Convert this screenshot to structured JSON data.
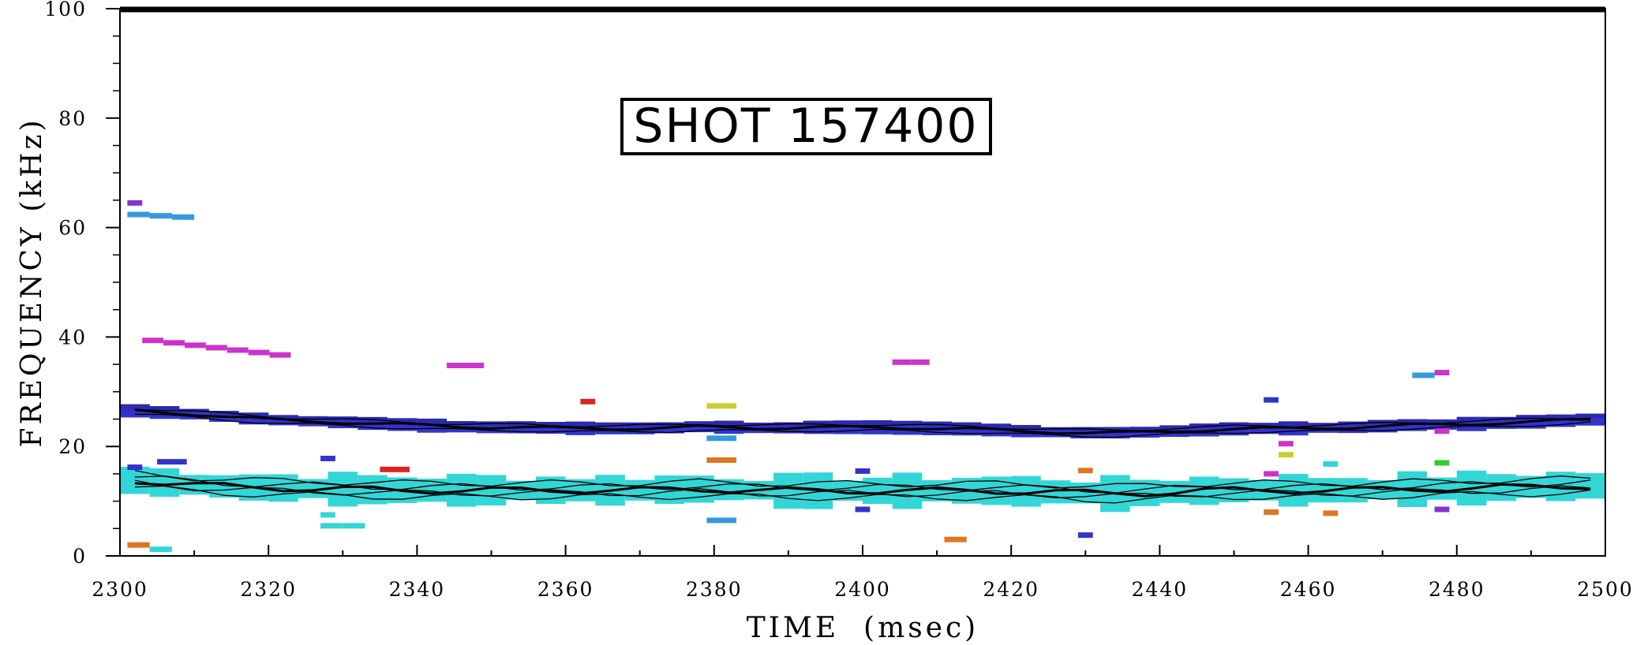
{
  "chart_data": {
    "type": "scatter",
    "title": "SHOT 157400",
    "xlabel": "TIME  (msec)",
    "ylabel": "FREQUENCY (kHz)",
    "xlim": [
      2300,
      2500
    ],
    "ylim": [
      0,
      100
    ],
    "xticks": [
      "2300",
      "2320",
      "2340",
      "2360",
      "2380",
      "2400",
      "2420",
      "2440",
      "2460",
      "2480",
      "2500"
    ],
    "yticks": [
      "0",
      "20",
      "40",
      "60",
      "80",
      "100"
    ],
    "grid": false,
    "legend": "none",
    "colors": {
      "cyan": "#33d6d6",
      "blue": "#3333cc",
      "lightblue": "#3399e0",
      "magenta": "#cc33cc",
      "purple": "#8833cc",
      "red": "#dd2222",
      "orange": "#dd7722",
      "yellow": "#cccc33",
      "green": "#33cc33",
      "black": "#000000"
    },
    "series": [
      {
        "color": "cyan",
        "x": [
          2302,
          2306,
          2310,
          2314,
          2318,
          2322,
          2326,
          2330,
          2334,
          2338,
          2342,
          2346,
          2350,
          2354,
          2358,
          2362,
          2366,
          2370,
          2374,
          2378,
          2382,
          2386,
          2390,
          2394,
          2398,
          2402,
          2406,
          2410,
          2414,
          2418,
          2422,
          2426,
          2430,
          2434,
          2438,
          2442,
          2446,
          2450,
          2454,
          2458,
          2462,
          2466,
          2470,
          2474,
          2478,
          2482,
          2486,
          2490,
          2494,
          2498
        ],
        "y": [
          13.8,
          13.4,
          13.0,
          12.7,
          12.5,
          12.4,
          12.3,
          12.2,
          12.1,
          12.0,
          12.0,
          12.0,
          12.0,
          12.0,
          12.0,
          12.0,
          12.0,
          12.0,
          12.1,
          12.2,
          12.1,
          12.0,
          11.9,
          11.9,
          11.9,
          11.9,
          11.9,
          11.9,
          11.9,
          11.9,
          11.8,
          11.7,
          11.5,
          11.4,
          11.5,
          11.7,
          11.9,
          12.0,
          12.0,
          12.0,
          12.0,
          12.0,
          12.1,
          12.2,
          12.3,
          12.4,
          12.5,
          12.6,
          12.7,
          12.8
        ]
      },
      {
        "color": "blue",
        "x": [
          2302,
          2306,
          2310,
          2314,
          2318,
          2322,
          2326,
          2330,
          2334,
          2338,
          2342,
          2346,
          2350,
          2354,
          2358,
          2362,
          2366,
          2370,
          2374,
          2378,
          2382,
          2386,
          2390,
          2394,
          2398,
          2402,
          2406,
          2410,
          2414,
          2418,
          2422,
          2426,
          2430,
          2434,
          2438,
          2442,
          2446,
          2450,
          2454,
          2458,
          2462,
          2466,
          2470,
          2474,
          2478,
          2482,
          2486,
          2490,
          2494,
          2498
        ],
        "y": [
          26.5,
          26.2,
          25.9,
          25.5,
          25.1,
          24.8,
          24.6,
          24.4,
          24.2,
          24.0,
          23.8,
          23.6,
          23.5,
          23.5,
          23.4,
          23.3,
          23.3,
          23.3,
          23.4,
          23.6,
          23.5,
          23.4,
          23.4,
          23.5,
          23.5,
          23.5,
          23.4,
          23.3,
          23.2,
          23.0,
          22.8,
          22.6,
          22.5,
          22.5,
          22.6,
          22.8,
          23.0,
          23.2,
          23.3,
          23.3,
          23.4,
          23.5,
          23.7,
          23.9,
          24.0,
          24.1,
          24.3,
          24.5,
          24.7,
          24.9
        ]
      }
    ],
    "fragments": [
      {
        "color": "lightblue",
        "x": [
          2301,
          2310
        ],
        "y": [
          62.5,
          61.8
        ]
      },
      {
        "color": "purple",
        "x": [
          2301,
          2303
        ],
        "y": [
          64.5,
          64.5
        ]
      },
      {
        "color": "magenta",
        "x": [
          2303,
          2323
        ],
        "y": [
          39.6,
          36.5
        ]
      },
      {
        "color": "magenta",
        "x": [
          2344,
          2349
        ],
        "y": [
          34.8,
          34.8
        ]
      },
      {
        "color": "magenta",
        "x": [
          2404,
          2409
        ],
        "y": [
          35.4,
          35.4
        ]
      },
      {
        "color": "red",
        "x": [
          2362,
          2364
        ],
        "y": [
          28.2,
          28.2
        ]
      },
      {
        "color": "red",
        "x": [
          2335,
          2339
        ],
        "y": [
          15.8,
          15.8
        ]
      },
      {
        "color": "yellow",
        "x": [
          2379,
          2383
        ],
        "y": [
          27.4,
          27.4
        ]
      },
      {
        "color": "lightblue",
        "x": [
          2379,
          2383
        ],
        "y": [
          21.5,
          21.5
        ]
      },
      {
        "color": "orange",
        "x": [
          2379,
          2383
        ],
        "y": [
          17.5,
          17.5
        ]
      },
      {
        "color": "lightblue",
        "x": [
          2379,
          2383
        ],
        "y": [
          6.5,
          6.5
        ]
      },
      {
        "color": "blue",
        "x": [
          2305,
          2309
        ],
        "y": [
          17.2,
          17.2
        ]
      },
      {
        "color": "blue",
        "x": [
          2301,
          2303
        ],
        "y": [
          16.2,
          16.2
        ]
      },
      {
        "color": "blue",
        "x": [
          2327,
          2329
        ],
        "y": [
          17.8,
          17.8
        ]
      },
      {
        "color": "cyan",
        "x": [
          2327,
          2333
        ],
        "y": [
          5.5,
          5.5
        ]
      },
      {
        "color": "cyan",
        "x": [
          2327,
          2329
        ],
        "y": [
          7.5,
          7.5
        ]
      },
      {
        "color": "orange",
        "x": [
          2301,
          2304
        ],
        "y": [
          2.0,
          2.0
        ]
      },
      {
        "color": "cyan",
        "x": [
          2304,
          2307
        ],
        "y": [
          1.2,
          1.2
        ]
      },
      {
        "color": "orange",
        "x": [
          2411,
          2414
        ],
        "y": [
          3.0,
          3.0
        ]
      },
      {
        "color": "blue",
        "x": [
          2429,
          2431
        ],
        "y": [
          3.8,
          3.8
        ]
      },
      {
        "color": "orange",
        "x": [
          2429,
          2431
        ],
        "y": [
          15.6,
          15.6
        ]
      },
      {
        "color": "blue",
        "x": [
          2399,
          2401
        ],
        "y": [
          8.5,
          8.5
        ]
      },
      {
        "color": "blue",
        "x": [
          2399,
          2401
        ],
        "y": [
          15.5,
          15.5
        ]
      },
      {
        "color": "blue",
        "x": [
          2454,
          2456
        ],
        "y": [
          28.5,
          28.5
        ]
      },
      {
        "color": "magenta",
        "x": [
          2454,
          2456
        ],
        "y": [
          15.0,
          15.0
        ]
      },
      {
        "color": "yellow",
        "x": [
          2456,
          2458
        ],
        "y": [
          18.5,
          18.5
        ]
      },
      {
        "color": "magenta",
        "x": [
          2456,
          2458
        ],
        "y": [
          20.5,
          20.5
        ]
      },
      {
        "color": "orange",
        "x": [
          2454,
          2456
        ],
        "y": [
          8.0,
          8.0
        ]
      },
      {
        "color": "cyan",
        "x": [
          2462,
          2464
        ],
        "y": [
          16.8,
          16.8
        ]
      },
      {
        "color": "orange",
        "x": [
          2462,
          2464
        ],
        "y": [
          7.8,
          7.8
        ]
      },
      {
        "color": "lightblue",
        "x": [
          2474,
          2477
        ],
        "y": [
          33.0,
          33.0
        ]
      },
      {
        "color": "magenta",
        "x": [
          2477,
          2479
        ],
        "y": [
          33.5,
          33.5
        ]
      },
      {
        "color": "green",
        "x": [
          2477,
          2479
        ],
        "y": [
          17.0,
          17.0
        ]
      },
      {
        "color": "magenta",
        "x": [
          2477,
          2479
        ],
        "y": [
          22.8,
          22.8
        ]
      },
      {
        "color": "purple",
        "x": [
          2477,
          2479
        ],
        "y": [
          8.5,
          8.5
        ]
      }
    ]
  }
}
